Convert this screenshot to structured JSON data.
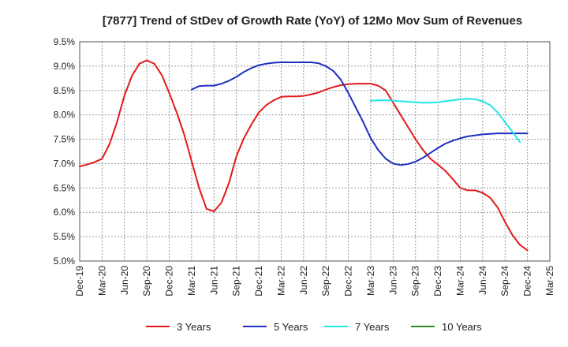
{
  "chart_data": {
    "type": "line",
    "title": "[7877]  Trend of StDev of Growth Rate (YoY) of 12Mo Mov Sum of Revenues",
    "xlabel": "",
    "ylabel": "",
    "ylim": [
      5.0,
      9.5
    ],
    "y_ticks": [
      "5.0%",
      "5.5%",
      "6.0%",
      "6.5%",
      "7.0%",
      "7.5%",
      "8.0%",
      "8.5%",
      "9.0%",
      "9.5%"
    ],
    "x_ticks": [
      "Dec-19",
      "Mar-20",
      "Jun-20",
      "Sep-20",
      "Dec-20",
      "Mar-21",
      "Jun-21",
      "Sep-21",
      "Dec-21",
      "Mar-22",
      "Jun-22",
      "Sep-22",
      "Dec-22",
      "Mar-23",
      "Jun-23",
      "Sep-23",
      "Dec-23",
      "Mar-24",
      "Jun-24",
      "Sep-24",
      "Dec-24",
      "Mar-25"
    ],
    "grid": true,
    "legend_position": "bottom",
    "series": [
      {
        "name": "3 Years",
        "color": "#e31a1c",
        "start_month": 0,
        "values": [
          6.94,
          6.98,
          7.03,
          7.1,
          7.4,
          7.85,
          8.4,
          8.8,
          9.05,
          9.12,
          9.05,
          8.82,
          8.45,
          8.05,
          7.6,
          7.05,
          6.5,
          6.07,
          6.02,
          6.2,
          6.6,
          7.15,
          7.52,
          7.8,
          8.05,
          8.2,
          8.3,
          8.37,
          8.38,
          8.38,
          8.39,
          8.42,
          8.46,
          8.52,
          8.57,
          8.61,
          8.63,
          8.64,
          8.64,
          8.64,
          8.6,
          8.5,
          8.25,
          8.0,
          7.75,
          7.5,
          7.28,
          7.1,
          6.98,
          6.85,
          6.68,
          6.5,
          6.45,
          6.45,
          6.4,
          6.3,
          6.1,
          5.8,
          5.53,
          5.33,
          5.22
        ]
      },
      {
        "name": "5 Years",
        "color": "#1f2fbf",
        "start_month": 15,
        "values": [
          8.52,
          8.59,
          8.6,
          8.6,
          8.64,
          8.7,
          8.78,
          8.88,
          8.96,
          9.02,
          9.05,
          9.07,
          9.08,
          9.08,
          9.08,
          9.08,
          9.08,
          9.06,
          9.0,
          8.9,
          8.72,
          8.45,
          8.15,
          7.85,
          7.52,
          7.28,
          7.1,
          7.0,
          6.97,
          6.99,
          7.04,
          7.12,
          7.22,
          7.32,
          7.41,
          7.47,
          7.52,
          7.56,
          7.58,
          7.6,
          7.61,
          7.62,
          7.62,
          7.62,
          7.62,
          7.62
        ]
      },
      {
        "name": "7 Years",
        "color": "#22e5e5",
        "start_month": 39,
        "values": [
          8.29,
          8.3,
          8.3,
          8.29,
          8.28,
          8.27,
          8.26,
          8.25,
          8.25,
          8.26,
          8.28,
          8.3,
          8.32,
          8.33,
          8.32,
          8.28,
          8.2,
          8.05,
          7.85,
          7.65,
          7.44
        ]
      },
      {
        "name": "10 Years",
        "color": "#2e8b2e",
        "start_month": 0,
        "values": []
      }
    ]
  }
}
